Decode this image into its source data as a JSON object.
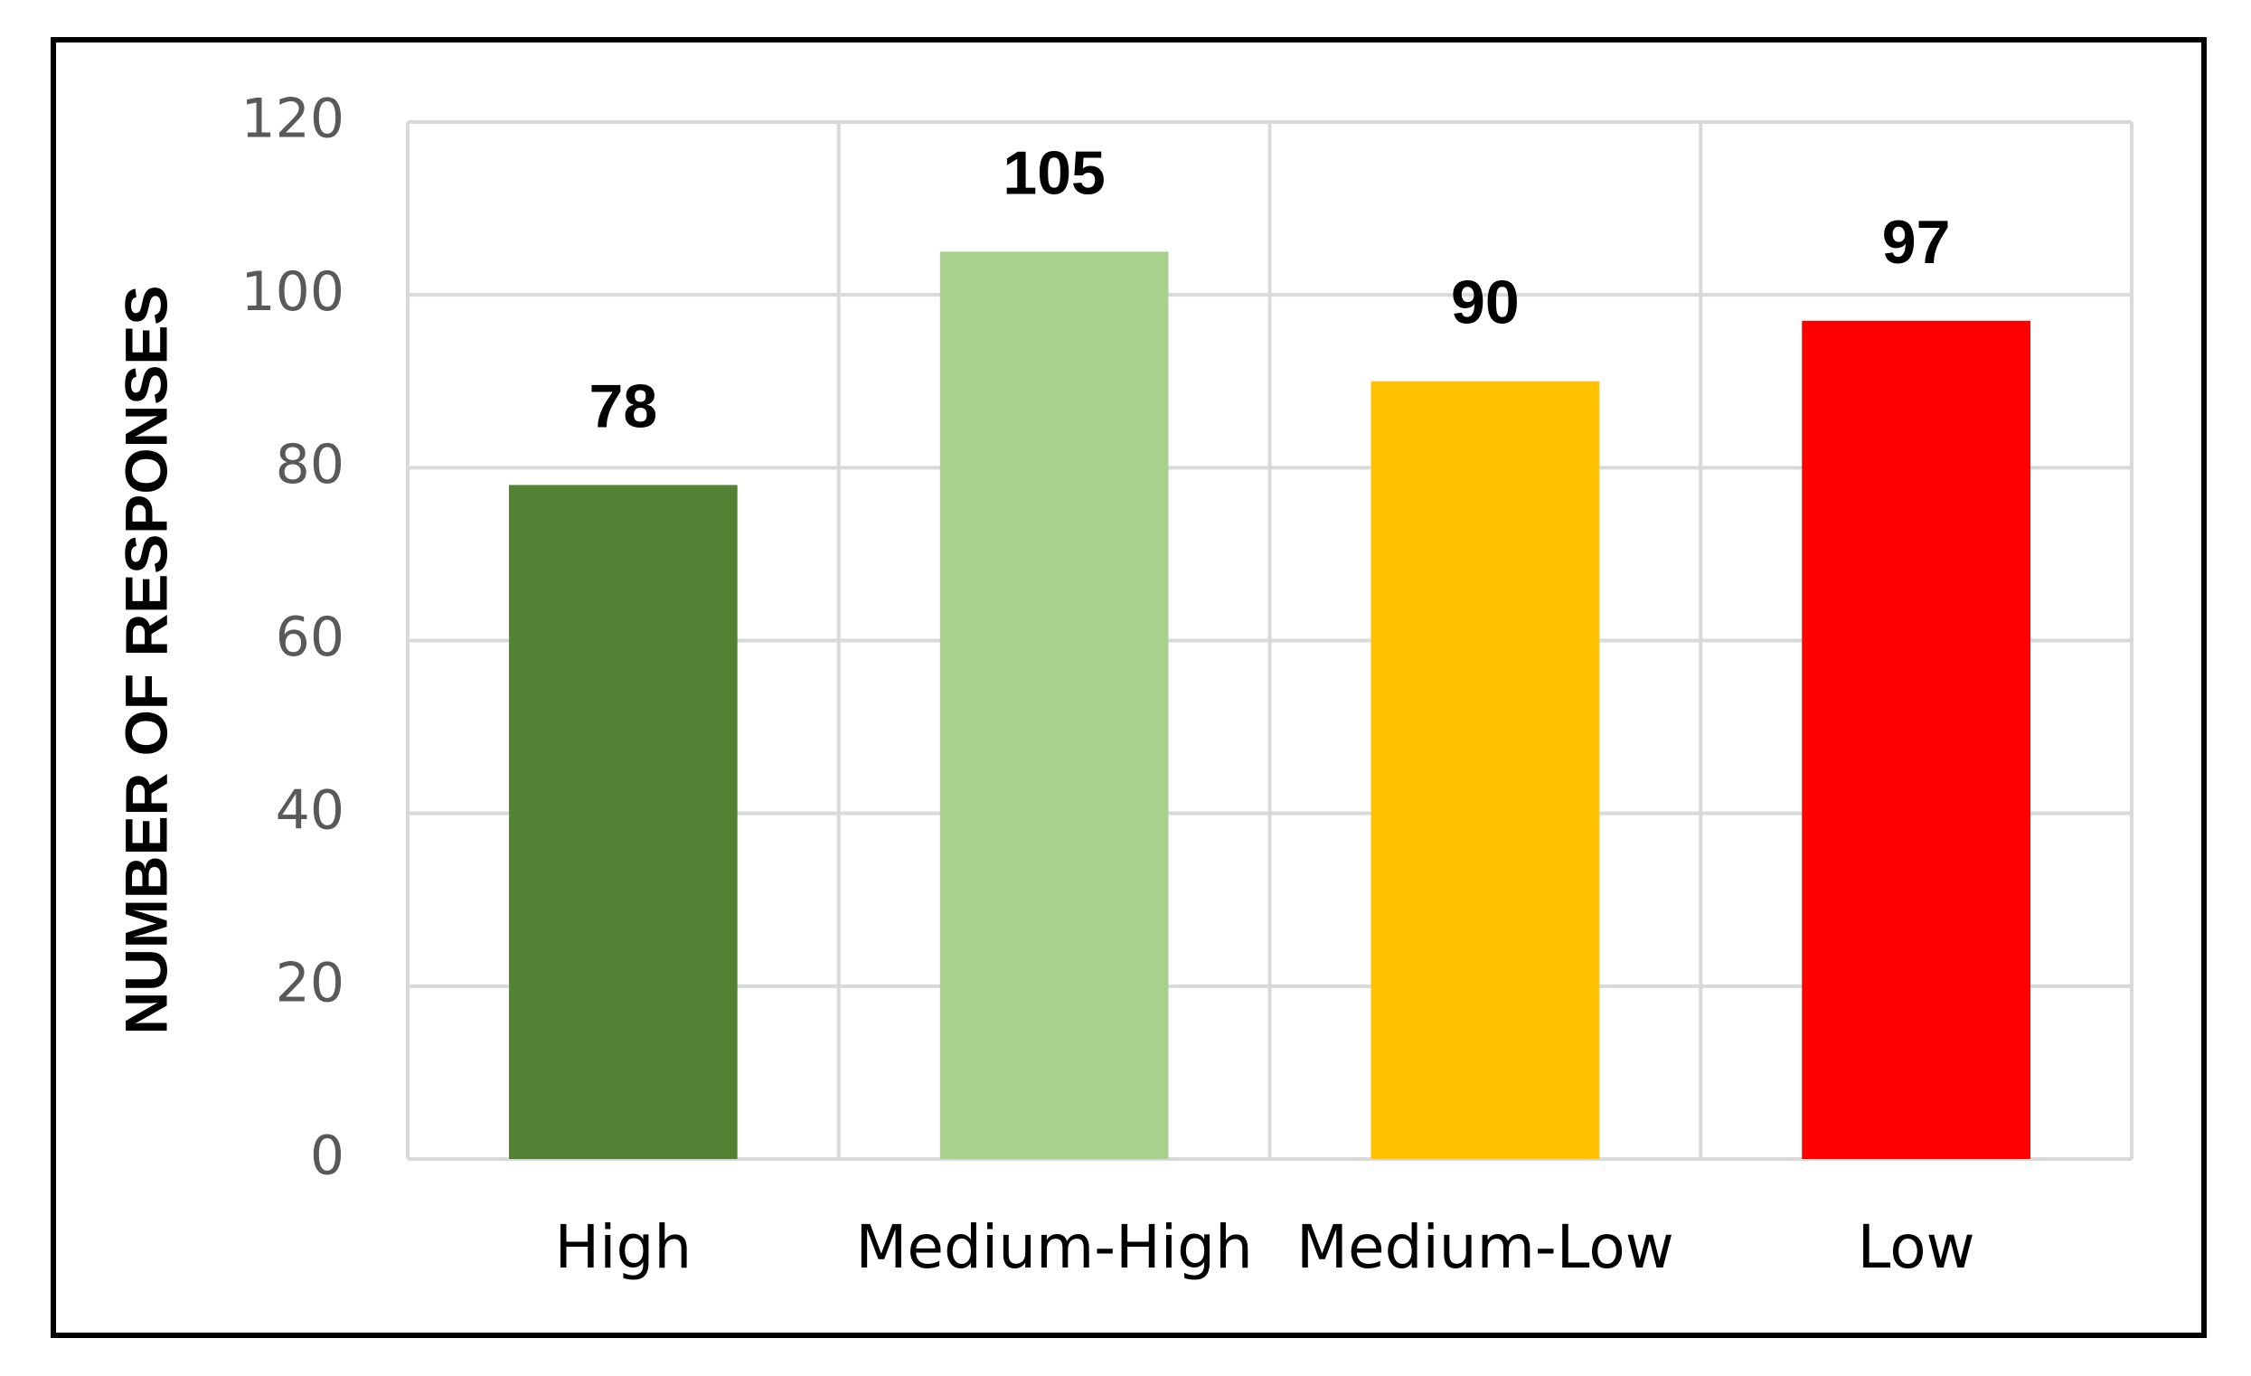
{
  "chart_data": {
    "type": "bar",
    "y_axis_label": "NUMBER OF RESPONSES",
    "categories": [
      "High",
      "Medium-High",
      "Medium-Low",
      "Low"
    ],
    "values": [
      78,
      105,
      90,
      97
    ],
    "colors": [
      "#548235",
      "#a9d18e",
      "#ffc000",
      "#ff0000"
    ],
    "ylim": [
      0,
      120
    ],
    "yticks": [
      0,
      20,
      40,
      60,
      80,
      100,
      120
    ],
    "grid": true,
    "vertical_grid": true,
    "data_labels": true
  }
}
